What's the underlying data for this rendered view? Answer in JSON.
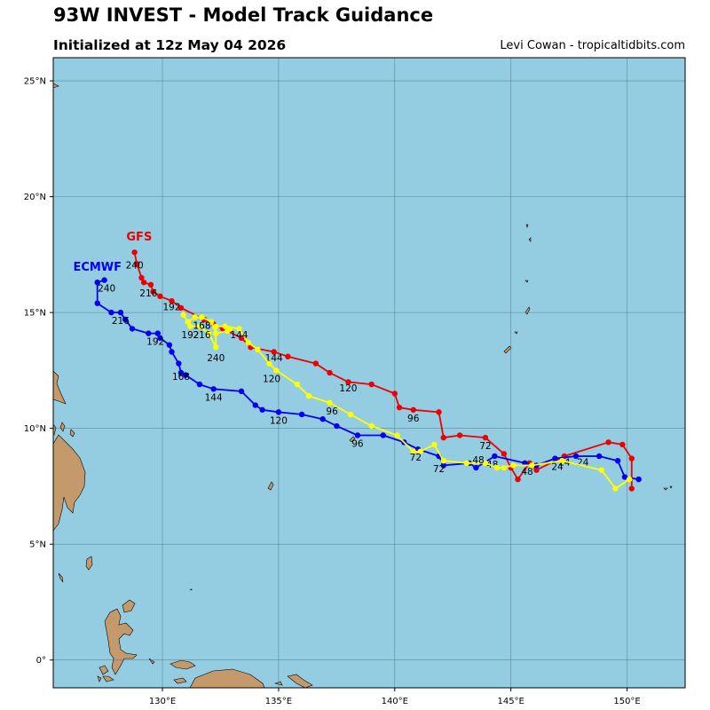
{
  "header": {
    "title": "93W INVEST - Model Track Guidance",
    "subtitle": "Initialized at 12z May 04 2026",
    "credit": "Levi Cowan - tropicaltidbits.com"
  },
  "colors": {
    "ocean": "#94CDE2",
    "land": "#C49A6C",
    "grid": "#4a6a78"
  },
  "chart_data": {
    "type": "map-tracks",
    "lon_range": [
      125.3,
      152.5
    ],
    "lat_range": [
      -1.2,
      26.0
    ],
    "lon_ticks": [
      {
        "v": 130,
        "label": "130°E"
      },
      {
        "v": 135,
        "label": "135°E"
      },
      {
        "v": 140,
        "label": "140°E"
      },
      {
        "v": 145,
        "label": "145°E"
      },
      {
        "v": 150,
        "label": "150°E"
      }
    ],
    "lat_ticks": [
      {
        "v": 0,
        "label": "0°"
      },
      {
        "v": 5,
        "label": "5°N"
      },
      {
        "v": 10,
        "label": "10°N"
      },
      {
        "v": 15,
        "label": "15°N"
      },
      {
        "v": 20,
        "label": "20°N"
      },
      {
        "v": 25,
        "label": "25°N"
      }
    ],
    "grid": true,
    "series": [
      {
        "name": "GFS",
        "color": "#ee0000",
        "label": "GFS",
        "label_at": [
          129.0,
          18.1
        ],
        "points": [
          [
            150.2,
            7.4
          ],
          [
            150.2,
            8.7
          ],
          [
            149.8,
            9.3
          ],
          [
            149.2,
            9.4
          ],
          [
            147.3,
            8.8
          ],
          [
            146.1,
            8.2
          ],
          [
            145.8,
            8.5
          ],
          [
            145.3,
            7.8
          ],
          [
            145.0,
            8.3
          ],
          [
            144.7,
            8.9
          ],
          [
            143.9,
            9.6
          ],
          [
            142.8,
            9.7
          ],
          [
            142.1,
            9.6
          ],
          [
            141.9,
            10.7
          ],
          [
            140.8,
            10.8
          ],
          [
            140.2,
            10.9
          ],
          [
            140.0,
            11.5
          ],
          [
            139.0,
            11.9
          ],
          [
            138.0,
            12.0
          ],
          [
            137.2,
            12.4
          ],
          [
            136.6,
            12.8
          ],
          [
            135.4,
            13.1
          ],
          [
            134.8,
            13.3
          ],
          [
            133.8,
            13.5
          ],
          [
            133.4,
            13.9
          ],
          [
            132.6,
            14.3
          ],
          [
            132.2,
            14.5
          ],
          [
            131.8,
            14.7
          ],
          [
            130.8,
            15.2
          ],
          [
            130.4,
            15.5
          ],
          [
            129.9,
            15.7
          ],
          [
            129.6,
            15.9
          ],
          [
            129.5,
            16.2
          ],
          [
            129.2,
            16.3
          ],
          [
            129.1,
            16.5
          ],
          [
            128.9,
            17.1
          ],
          [
            128.8,
            17.6
          ]
        ],
        "labels": [
          {
            "t": "24",
            "lon": 147.3,
            "lat": 8.4
          },
          {
            "t": "48",
            "lon": 145.7,
            "lat": 8.0
          },
          {
            "t": "72",
            "lon": 143.9,
            "lat": 9.1
          },
          {
            "t": "96",
            "lon": 140.8,
            "lat": 10.3
          },
          {
            "t": "120",
            "lon": 138.0,
            "lat": 11.6
          },
          {
            "t": "144",
            "lon": 134.8,
            "lat": 12.9
          },
          {
            "t": "168",
            "lon": 131.7,
            "lat": 14.3
          },
          {
            "t": "192",
            "lon": 130.4,
            "lat": 15.1
          },
          {
            "t": "216",
            "lon": 129.4,
            "lat": 15.7
          },
          {
            "t": "240",
            "lon": 128.8,
            "lat": 16.9
          }
        ]
      },
      {
        "name": "ECMWF",
        "color": "#0000ee",
        "label": "ECMWF",
        "label_at": [
          127.2,
          16.8
        ],
        "points": [
          [
            150.5,
            7.8
          ],
          [
            149.9,
            7.9
          ],
          [
            149.6,
            8.6
          ],
          [
            148.8,
            8.8
          ],
          [
            147.8,
            8.8
          ],
          [
            146.9,
            8.7
          ],
          [
            146.1,
            8.4
          ],
          [
            145.6,
            8.5
          ],
          [
            144.3,
            8.8
          ],
          [
            143.5,
            8.3
          ],
          [
            143.2,
            8.5
          ],
          [
            142.1,
            8.4
          ],
          [
            141.9,
            8.8
          ],
          [
            141.0,
            9.1
          ],
          [
            140.4,
            9.4
          ],
          [
            139.5,
            9.7
          ],
          [
            138.4,
            9.7
          ],
          [
            137.5,
            10.1
          ],
          [
            136.9,
            10.4
          ],
          [
            136.0,
            10.6
          ],
          [
            135.0,
            10.7
          ],
          [
            134.3,
            10.8
          ],
          [
            134.0,
            11.0
          ],
          [
            133.4,
            11.6
          ],
          [
            132.2,
            11.7
          ],
          [
            131.6,
            11.9
          ],
          [
            131.0,
            12.3
          ],
          [
            130.8,
            12.4
          ],
          [
            130.7,
            12.8
          ],
          [
            130.4,
            13.3
          ],
          [
            130.3,
            13.6
          ],
          [
            129.9,
            13.9
          ],
          [
            129.8,
            14.1
          ],
          [
            129.4,
            14.1
          ],
          [
            128.7,
            14.3
          ],
          [
            128.4,
            14.7
          ],
          [
            128.2,
            15.0
          ],
          [
            127.8,
            15.0
          ],
          [
            127.2,
            15.4
          ],
          [
            127.2,
            16.3
          ],
          [
            127.5,
            16.4
          ]
        ],
        "labels": [
          {
            "t": "24",
            "lon": 148.1,
            "lat": 8.4
          },
          {
            "t": "48",
            "lon": 144.2,
            "lat": 8.3
          },
          {
            "t": "72",
            "lon": 141.9,
            "lat": 8.1
          },
          {
            "t": "96",
            "lon": 138.4,
            "lat": 9.2
          },
          {
            "t": "120",
            "lon": 135.0,
            "lat": 10.2
          },
          {
            "t": "144",
            "lon": 132.2,
            "lat": 11.2
          },
          {
            "t": "168",
            "lon": 130.8,
            "lat": 12.1
          },
          {
            "t": "192",
            "lon": 129.7,
            "lat": 13.6
          },
          {
            "t": "216",
            "lon": 128.2,
            "lat": 14.5
          },
          {
            "t": "240",
            "lon": 127.6,
            "lat": 15.9
          }
        ]
      },
      {
        "name": "",
        "color": "#ffff00",
        "label": "",
        "label_at": null,
        "points": [
          [
            150.1,
            7.8
          ],
          [
            149.5,
            7.4
          ],
          [
            148.9,
            8.2
          ],
          [
            147.2,
            8.6
          ],
          [
            145.9,
            8.4
          ],
          [
            145.1,
            8.4
          ],
          [
            144.7,
            8.3
          ],
          [
            144.4,
            8.3
          ],
          [
            143.9,
            8.5
          ],
          [
            143.1,
            8.5
          ],
          [
            142.1,
            8.6
          ],
          [
            141.7,
            9.3
          ],
          [
            141.1,
            9.0
          ],
          [
            140.8,
            9.0
          ],
          [
            140.1,
            9.7
          ],
          [
            139.0,
            10.1
          ],
          [
            138.1,
            10.6
          ],
          [
            137.2,
            11.1
          ],
          [
            136.3,
            11.4
          ],
          [
            135.8,
            11.9
          ],
          [
            134.9,
            12.5
          ],
          [
            134.6,
            12.8
          ],
          [
            134.1,
            13.4
          ],
          [
            133.7,
            13.7
          ],
          [
            133.3,
            14.3
          ],
          [
            132.7,
            14.4
          ],
          [
            132.3,
            14.4
          ],
          [
            132.3,
            13.5
          ],
          [
            132.0,
            14.1
          ],
          [
            131.6,
            14.4
          ],
          [
            131.2,
            14.4
          ],
          [
            131.1,
            14.6
          ],
          [
            130.9,
            14.9
          ],
          [
            131.1,
            14.6
          ],
          [
            131.4,
            14.8
          ],
          [
            131.7,
            14.8
          ],
          [
            132.1,
            14.6
          ],
          [
            132.3,
            14.1
          ],
          [
            132.8,
            14.2
          ],
          [
            132.9,
            14.3
          ]
        ],
        "labels": [
          {
            "t": "24",
            "lon": 147.0,
            "lat": 8.2
          },
          {
            "t": "48",
            "lon": 143.6,
            "lat": 8.5
          },
          {
            "t": "72",
            "lon": 140.9,
            "lat": 8.6
          },
          {
            "t": "96",
            "lon": 137.3,
            "lat": 10.6
          },
          {
            "t": "120",
            "lon": 134.7,
            "lat": 12.0
          },
          {
            "t": "144",
            "lon": 133.3,
            "lat": 13.9
          },
          {
            "t": "168",
            "lon": 131.7,
            "lat": 14.3
          },
          {
            "t": "192",
            "lon": 131.2,
            "lat": 13.9
          },
          {
            "t": "216",
            "lon": 131.7,
            "lat": 13.9
          },
          {
            "t": "240",
            "lon": 132.3,
            "lat": 12.9
          }
        ]
      }
    ]
  }
}
